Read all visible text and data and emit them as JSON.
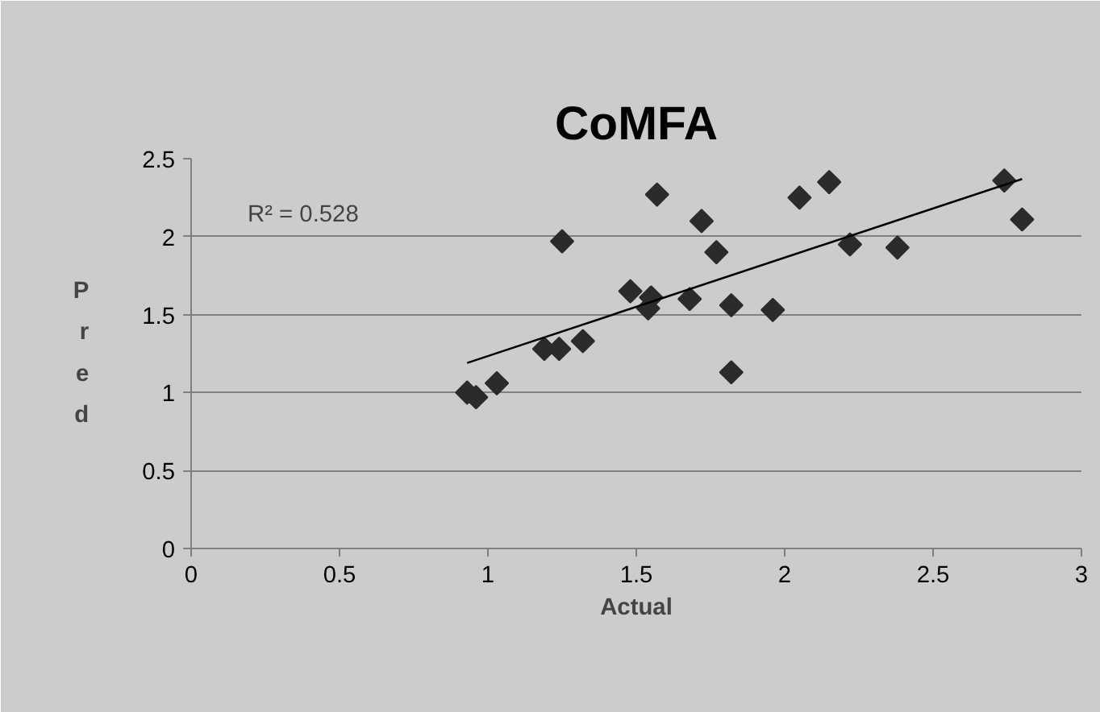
{
  "chart_data": {
    "type": "scatter",
    "title": "CoMFA",
    "xlabel": "Actual",
    "ylabel": "Pred",
    "annotations": [
      "R² = 0.528"
    ],
    "x": [
      0.93,
      0.96,
      1.03,
      1.19,
      1.24,
      1.25,
      1.32,
      1.48,
      1.54,
      1.55,
      1.57,
      1.68,
      1.72,
      1.77,
      1.82,
      1.82,
      1.96,
      2.05,
      2.15,
      2.22,
      2.38,
      2.74,
      2.8
    ],
    "series": [
      {
        "color": "#2b2b2b",
        "values": [
          1.0,
          0.97,
          1.06,
          1.28,
          1.28,
          1.97,
          1.33,
          1.65,
          1.54,
          1.61,
          2.27,
          1.6,
          2.1,
          1.9,
          1.56,
          1.13,
          1.53,
          2.25,
          2.35,
          1.95,
          1.93,
          2.36,
          2.11
        ]
      },
      {
        "type": "line",
        "color": "#000000",
        "x": [
          0.93,
          2.8
        ],
        "values": [
          1.19,
          2.37
        ],
        "marker": "none"
      }
    ],
    "xlim": [
      0,
      3
    ],
    "xticks": [
      0,
      0.5,
      1,
      1.5,
      2,
      2.5,
      3
    ],
    "ylim": [
      0,
      2.5
    ],
    "yticks": [
      0,
      0.5,
      1,
      1.5,
      2,
      2.5
    ],
    "grid": "y",
    "marker": "diamond"
  }
}
